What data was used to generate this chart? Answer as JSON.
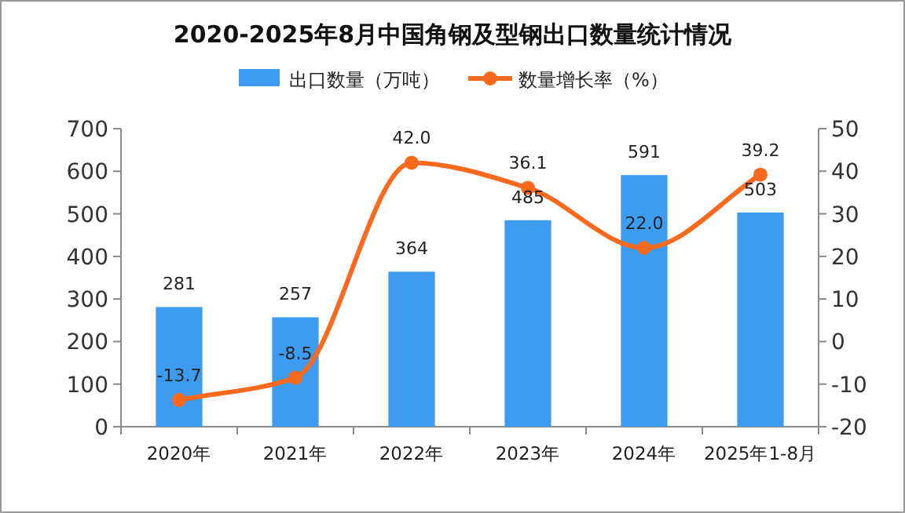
{
  "chart_data": {
    "type": "bar",
    "title": "2020-2025年8月中国角钢及型钢出口数量统计情况",
    "categories": [
      "2020年",
      "2021年",
      "2022年",
      "2023年",
      "2024年",
      "2025年1-8月"
    ],
    "series": [
      {
        "name": "出口数量（万吨）",
        "color": "#3d9bf0",
        "values": [
          281,
          257,
          364,
          485,
          591,
          503
        ],
        "value_labels": [
          "281",
          "257",
          "364",
          "485",
          "591",
          "503"
        ]
      },
      {
        "name": "数量增长率（%）",
        "type": "line",
        "axis": "y2",
        "color": "#fa6a1e",
        "marker": "circle",
        "values": [
          -13.7,
          -8.5,
          42.0,
          36.1,
          22.0,
          39.2
        ],
        "value_labels": [
          "-13.7",
          "-8.5",
          "42.0",
          "36.1",
          "22.0",
          "39.2"
        ]
      }
    ],
    "ylim": [
      0,
      700
    ],
    "yticks": [
      0,
      100,
      200,
      300,
      400,
      500,
      600,
      700
    ],
    "y2lim": [
      -20,
      50
    ],
    "y2ticks": [
      -20,
      -10,
      0,
      10,
      20,
      30,
      40,
      50
    ],
    "legend": "top",
    "grid": false
  }
}
